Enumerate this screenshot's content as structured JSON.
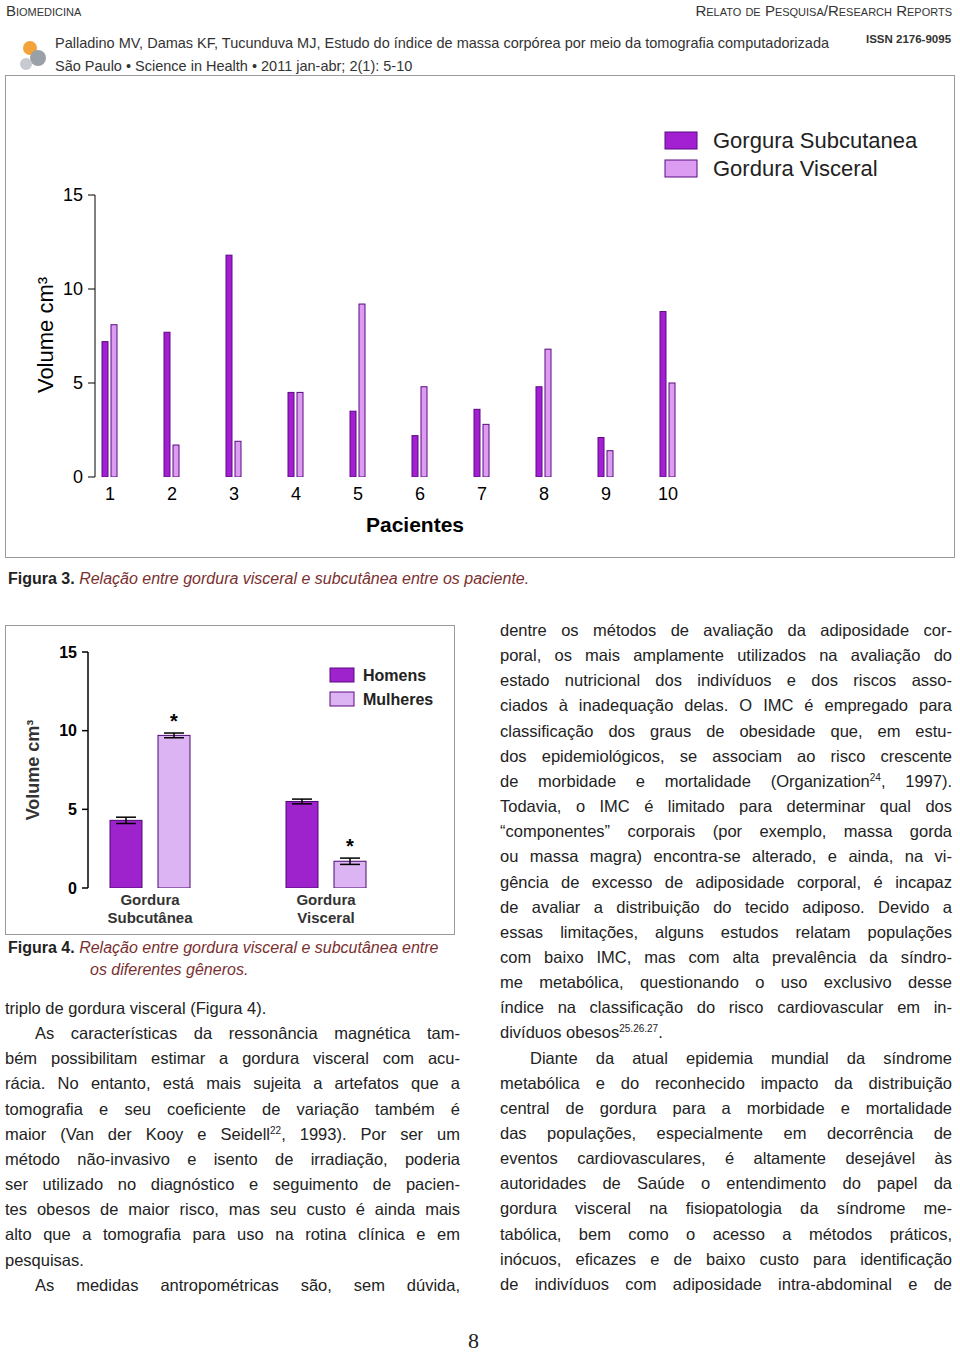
{
  "header": {
    "section": "Biomedicina",
    "report_type": "Relato de Pesquisa/Research Reports",
    "citation": "Palladino MV, Damas KF, Tucunduva MJ, Estudo do índice de massa corpórea por meio da tomografia computadorizada",
    "source": "São Paulo • Science in Health • 2011 jan-abr; 2(1): 5-10",
    "issn": "ISSN 2176-9095"
  },
  "chart_data": [
    {
      "type": "bar",
      "x_label": "Pacientes",
      "y_label": "Volume cm³",
      "categories": [
        "1",
        "2",
        "3",
        "4",
        "5",
        "6",
        "7",
        "8",
        "9",
        "10"
      ],
      "series": [
        {
          "name": "Gorgura Subcutanea",
          "color": "#a21fd2",
          "values": [
            7.2,
            7.7,
            11.8,
            4.5,
            3.5,
            2.2,
            3.6,
            4.8,
            2.1,
            8.8
          ]
        },
        {
          "name": "Gordura Visceral",
          "color": "#dc9cf2",
          "values": [
            8.1,
            1.7,
            1.9,
            4.5,
            9.2,
            4.8,
            2.8,
            6.8,
            1.4,
            5.0
          ]
        }
      ],
      "ylim": [
        0,
        15
      ],
      "yticks": [
        0,
        5,
        10,
        15
      ],
      "legend": "top-right"
    },
    {
      "type": "bar",
      "y_label": "Volume cm³",
      "categories": [
        "Gordura Subcutânea",
        "Gordura Visceral"
      ],
      "series": [
        {
          "name": "Homens",
          "color": "#9e23cc",
          "values": [
            4.3,
            5.5
          ],
          "errors": [
            0.2,
            0.15
          ]
        },
        {
          "name": "Mulheres",
          "color": "#dcb3f3",
          "values": [
            9.7,
            1.7
          ],
          "errors": [
            0.15,
            0.2
          ]
        }
      ],
      "ylim": [
        0,
        15
      ],
      "yticks": [
        0,
        5,
        10,
        15
      ],
      "legend": "top-right",
      "annotations": [
        {
          "text": "*",
          "series": "Mulheres",
          "category": "Gordura Subcutânea"
        },
        {
          "text": "*",
          "series": "Mulheres",
          "category": "Gordura Visceral"
        }
      ]
    }
  ],
  "captions": [
    {
      "label": "Figura 3.",
      "lines": [
        "Relação entre gordura visceral e subcutânea entre os paciente."
      ]
    },
    {
      "label": "Figura 4.",
      "lines": [
        "Relação entre gordura visceral e subcutânea entre",
        "os diferentes gêneros."
      ]
    }
  ],
  "columns": [
    {
      "paragraphs": [
        {
          "indent": false,
          "continues": false,
          "lines": [
            [
              "triplo de gordura visceral (Figura 4)."
            ]
          ]
        },
        {
          "indent": true,
          "continues": false,
          "lines": [
            [
              "As características da ressonância magnética tam-"
            ],
            [
              "bém possibilitam estimar a gordura visceral com acu-"
            ],
            [
              "rácia. No entanto, está mais sujeita a artefatos que a"
            ],
            [
              "tomografia e seu coeficiente de variação também é"
            ],
            [
              "maior (Van der Kooy e Seidell",
              {
                "sup": "22"
              },
              ", 1993). Por ser um"
            ],
            [
              "método não-invasivo e isento de irradiação, poderia"
            ],
            [
              "ser utilizado no diagnóstico e seguimento de pacien-"
            ],
            [
              "tes obesos de maior risco, mas seu custo é ainda mais"
            ],
            [
              "alto que a tomografia para uso na rotina clínica e em"
            ],
            [
              "pesquisas."
            ]
          ]
        },
        {
          "indent": true,
          "continues": true,
          "lines": [
            [
              "As medidas antropométricas são, sem dúvida,"
            ]
          ]
        }
      ]
    },
    {
      "paragraphs": [
        {
          "indent": false,
          "continues": false,
          "lines": [
            [
              "dentre os métodos de avaliação da adiposidade cor-"
            ],
            [
              "poral, os mais amplamente utilizados na avaliação do"
            ],
            [
              "estado nutricional dos indivíduos e dos riscos asso-"
            ],
            [
              "ciados à inadequação delas. O IMC é empregado para"
            ],
            [
              "classificação dos graus de obesidade que, em estu-"
            ],
            [
              "dos epidemiológicos, se associam ao risco crescente"
            ],
            [
              "de morbidade e mortalidade (Organization",
              {
                "sup": "24"
              },
              ", 1997)."
            ],
            [
              "Todavia, o IMC é limitado para determinar qual dos"
            ],
            [
              "“componentes” corporais (por exemplo, massa gorda"
            ],
            [
              "ou massa magra) encontra-se alterado, e ainda, na vi-"
            ],
            [
              "gência de excesso de adiposidade corporal, é incapaz"
            ],
            [
              "de avaliar a distribuição do tecido adiposo. Devido a"
            ],
            [
              "essas limitações, alguns estudos relatam populações"
            ],
            [
              "com baixo IMC, mas com alta prevalência da síndro-"
            ],
            [
              "me metabólica, questionando o uso exclusivo desse"
            ],
            [
              "índice na classificação do risco cardiovascular em in-"
            ],
            [
              "divíduos obesos",
              {
                "sup": "25.26.27"
              },
              "."
            ]
          ]
        },
        {
          "indent": true,
          "continues": true,
          "lines": [
            [
              "Diante da atual epidemia mundial da síndrome"
            ],
            [
              "metabólica e do reconhecido impacto da distribuição"
            ],
            [
              "central de gordura para a morbidade e mortalidade"
            ],
            [
              "das populações, especialmente em decorrência de"
            ],
            [
              "eventos cardiovasculares, é altamente desejável às"
            ],
            [
              "autoridades de Saúde o entendimento do papel da"
            ],
            [
              "gordura visceral na fisiopatologia da síndrome me-"
            ],
            [
              "tabólica, bem como o acesso a métodos práticos,"
            ],
            [
              "inócuos, eficazes e de baixo custo para identificação"
            ],
            [
              "de indivíduos com adiposidade intra-abdominal e de"
            ]
          ]
        }
      ]
    }
  ],
  "page_number": "8"
}
